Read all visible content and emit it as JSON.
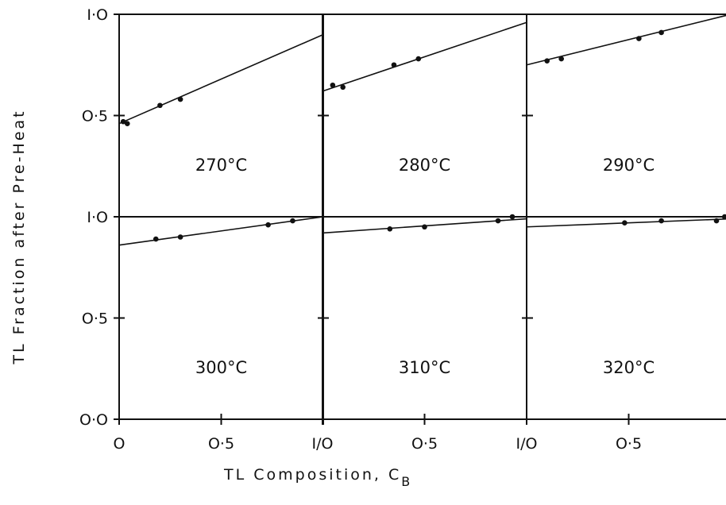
{
  "chart_data": {
    "type": "scatter",
    "layout": "2x3 panel grid",
    "xlabel": "TL Composition, C",
    "xlabel_subscript": "B",
    "ylabel": "TL Fraction after Pre-Heat",
    "xlim": [
      0,
      1
    ],
    "ylim": [
      0,
      1
    ],
    "x_tick_labels": [
      "O",
      "O·5",
      "I/O",
      "O·5",
      "I/O",
      "O·5"
    ],
    "y_tick_labels_top": [
      "I·O",
      "O·5"
    ],
    "y_tick_labels_bottom": [
      "I·O",
      "O·5",
      "O·O"
    ],
    "grid": false,
    "line_color": "#111111",
    "panels": [
      {
        "label": "270°C",
        "row": 0,
        "col": 0,
        "points": [
          {
            "x": 0.02,
            "y": 0.47
          },
          {
            "x": 0.04,
            "y": 0.46
          },
          {
            "x": 0.2,
            "y": 0.55
          },
          {
            "x": 0.3,
            "y": 0.58
          }
        ],
        "fit": [
          {
            "x": 0,
            "y": 0.46
          },
          {
            "x": 1,
            "y": 0.9
          }
        ]
      },
      {
        "label": "280°C",
        "row": 0,
        "col": 1,
        "points": [
          {
            "x": 0.05,
            "y": 0.65
          },
          {
            "x": 0.1,
            "y": 0.64
          },
          {
            "x": 0.35,
            "y": 0.75
          },
          {
            "x": 0.47,
            "y": 0.78
          }
        ],
        "fit": [
          {
            "x": 0,
            "y": 0.62
          },
          {
            "x": 1,
            "y": 0.96
          }
        ]
      },
      {
        "label": "290°C",
        "row": 0,
        "col": 2,
        "points": [
          {
            "x": 0.1,
            "y": 0.77
          },
          {
            "x": 0.17,
            "y": 0.78
          },
          {
            "x": 0.55,
            "y": 0.88
          },
          {
            "x": 0.66,
            "y": 0.91
          }
        ],
        "fit": [
          {
            "x": 0,
            "y": 0.75
          },
          {
            "x": 1,
            "y": 1.0
          }
        ]
      },
      {
        "label": "300°C",
        "row": 1,
        "col": 0,
        "points": [
          {
            "x": 0.18,
            "y": 0.89
          },
          {
            "x": 0.3,
            "y": 0.9
          },
          {
            "x": 0.73,
            "y": 0.96
          },
          {
            "x": 0.85,
            "y": 0.98
          }
        ],
        "fit": [
          {
            "x": 0,
            "y": 0.86
          },
          {
            "x": 1,
            "y": 1.0
          }
        ],
        "reference": 1.0
      },
      {
        "label": "310°C",
        "row": 1,
        "col": 1,
        "points": [
          {
            "x": 0.33,
            "y": 0.94
          },
          {
            "x": 0.5,
            "y": 0.95
          },
          {
            "x": 0.86,
            "y": 0.98
          },
          {
            "x": 0.93,
            "y": 1.0
          }
        ],
        "fit": [
          {
            "x": 0,
            "y": 0.92
          },
          {
            "x": 1,
            "y": 0.99
          }
        ],
        "reference": 1.0
      },
      {
        "label": "320°C",
        "row": 1,
        "col": 2,
        "points": [
          {
            "x": 0.48,
            "y": 0.97
          },
          {
            "x": 0.66,
            "y": 0.98
          },
          {
            "x": 0.93,
            "y": 0.98
          },
          {
            "x": 0.97,
            "y": 1.0
          }
        ],
        "fit": [
          {
            "x": 0,
            "y": 0.95
          },
          {
            "x": 1,
            "y": 0.99
          }
        ],
        "reference": 1.0
      }
    ]
  }
}
